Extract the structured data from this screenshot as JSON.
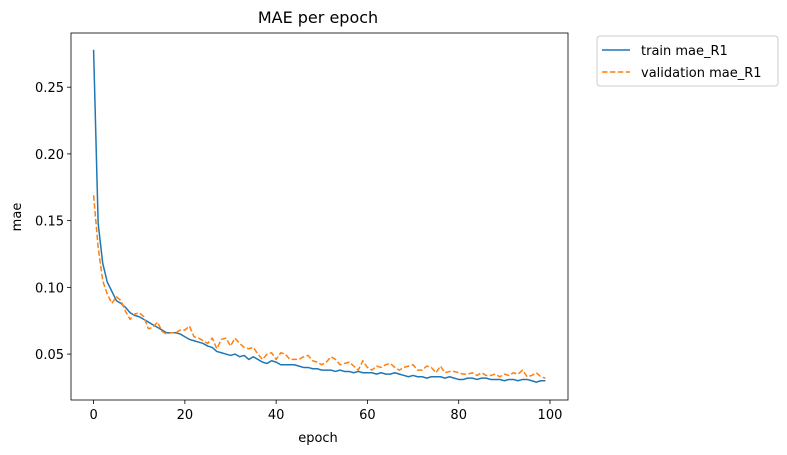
{
  "chart_data": {
    "type": "line",
    "title": "MAE per epoch",
    "xlabel": "epoch",
    "ylabel": "mae",
    "xlim": [
      -4.95,
      103.95
    ],
    "ylim": [
      0.0156,
      0.2906
    ],
    "xticks": [
      0,
      20,
      40,
      60,
      80,
      100
    ],
    "xtick_labels": [
      "0",
      "20",
      "40",
      "60",
      "80",
      "100"
    ],
    "yticks": [
      0.05,
      0.1,
      0.15,
      0.2,
      0.25
    ],
    "ytick_labels": [
      "0.05",
      "0.10",
      "0.15",
      "0.20",
      "0.25"
    ],
    "grid": false,
    "legend_position": "outside-top-right",
    "series": [
      {
        "name": "train mae_R1",
        "color": "#1f77b4",
        "style": "solid",
        "x": [
          0,
          1,
          2,
          3,
          4,
          5,
          6,
          7,
          8,
          9,
          10,
          11,
          12,
          13,
          14,
          15,
          16,
          17,
          18,
          19,
          20,
          21,
          22,
          23,
          24,
          25,
          26,
          27,
          28,
          29,
          30,
          31,
          32,
          33,
          34,
          35,
          36,
          37,
          38,
          39,
          40,
          41,
          42,
          43,
          44,
          45,
          46,
          47,
          48,
          49,
          50,
          51,
          52,
          53,
          54,
          55,
          56,
          57,
          58,
          59,
          60,
          61,
          62,
          63,
          64,
          65,
          66,
          67,
          68,
          69,
          70,
          71,
          72,
          73,
          74,
          75,
          76,
          77,
          78,
          79,
          80,
          81,
          82,
          83,
          84,
          85,
          86,
          87,
          88,
          89,
          90,
          91,
          92,
          93,
          94,
          95,
          96,
          97,
          98,
          99
        ],
        "values": [
          0.278,
          0.148,
          0.118,
          0.104,
          0.097,
          0.09,
          0.088,
          0.085,
          0.081,
          0.079,
          0.078,
          0.076,
          0.074,
          0.072,
          0.07,
          0.068,
          0.066,
          0.066,
          0.066,
          0.065,
          0.063,
          0.061,
          0.06,
          0.059,
          0.058,
          0.056,
          0.055,
          0.052,
          0.051,
          0.05,
          0.049,
          0.05,
          0.048,
          0.049,
          0.046,
          0.048,
          0.046,
          0.044,
          0.043,
          0.045,
          0.044,
          0.042,
          0.042,
          0.042,
          0.042,
          0.041,
          0.04,
          0.04,
          0.039,
          0.039,
          0.038,
          0.038,
          0.038,
          0.037,
          0.038,
          0.037,
          0.037,
          0.036,
          0.037,
          0.036,
          0.036,
          0.036,
          0.035,
          0.036,
          0.035,
          0.035,
          0.036,
          0.035,
          0.034,
          0.033,
          0.034,
          0.033,
          0.033,
          0.032,
          0.033,
          0.033,
          0.033,
          0.032,
          0.033,
          0.032,
          0.031,
          0.031,
          0.032,
          0.032,
          0.031,
          0.032,
          0.032,
          0.031,
          0.031,
          0.031,
          0.03,
          0.031,
          0.031,
          0.03,
          0.031,
          0.031,
          0.03,
          0.029,
          0.03,
          0.03
        ]
      },
      {
        "name": "validation mae_R1",
        "color": "#ff7f0e",
        "style": "dashed",
        "x": [
          0,
          1,
          2,
          3,
          4,
          5,
          6,
          7,
          8,
          9,
          10,
          11,
          12,
          13,
          14,
          15,
          16,
          17,
          18,
          19,
          20,
          21,
          22,
          23,
          24,
          25,
          26,
          27,
          28,
          29,
          30,
          31,
          32,
          33,
          34,
          35,
          36,
          37,
          38,
          39,
          40,
          41,
          42,
          43,
          44,
          45,
          46,
          47,
          48,
          49,
          50,
          51,
          52,
          53,
          54,
          55,
          56,
          57,
          58,
          59,
          60,
          61,
          62,
          63,
          64,
          65,
          66,
          67,
          68,
          69,
          70,
          71,
          72,
          73,
          74,
          75,
          76,
          77,
          78,
          79,
          80,
          81,
          82,
          83,
          84,
          85,
          86,
          87,
          88,
          89,
          90,
          91,
          92,
          93,
          94,
          95,
          96,
          97,
          98,
          99
        ],
        "values": [
          0.169,
          0.13,
          0.105,
          0.095,
          0.088,
          0.093,
          0.09,
          0.082,
          0.076,
          0.08,
          0.081,
          0.078,
          0.069,
          0.07,
          0.074,
          0.067,
          0.065,
          0.066,
          0.066,
          0.068,
          0.068,
          0.071,
          0.063,
          0.062,
          0.06,
          0.058,
          0.062,
          0.054,
          0.061,
          0.062,
          0.056,
          0.062,
          0.058,
          0.055,
          0.054,
          0.055,
          0.05,
          0.046,
          0.05,
          0.051,
          0.046,
          0.051,
          0.05,
          0.046,
          0.046,
          0.046,
          0.048,
          0.049,
          0.045,
          0.044,
          0.042,
          0.044,
          0.048,
          0.046,
          0.042,
          0.043,
          0.044,
          0.041,
          0.038,
          0.045,
          0.04,
          0.038,
          0.041,
          0.04,
          0.042,
          0.043,
          0.04,
          0.038,
          0.04,
          0.041,
          0.042,
          0.038,
          0.038,
          0.041,
          0.04,
          0.036,
          0.041,
          0.036,
          0.037,
          0.037,
          0.036,
          0.035,
          0.035,
          0.036,
          0.034,
          0.036,
          0.034,
          0.034,
          0.035,
          0.033,
          0.035,
          0.034,
          0.036,
          0.035,
          0.038,
          0.033,
          0.034,
          0.036,
          0.033,
          0.032
        ]
      }
    ]
  }
}
